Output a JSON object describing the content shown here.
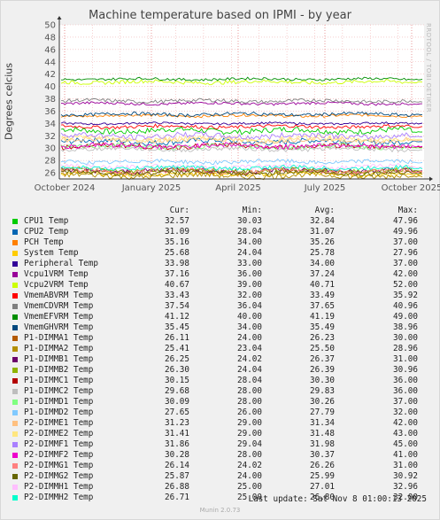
{
  "chart_data": {
    "type": "line",
    "title": "Machine temperature based on IPMI - by year",
    "ylabel": "Degrees celcius",
    "ylim": [
      25,
      50
    ],
    "yticks": [
      26,
      28,
      30,
      32,
      34,
      36,
      38,
      40,
      42,
      44,
      46,
      48,
      50
    ],
    "xticks": [
      "October 2024",
      "January 2025",
      "April 2025",
      "July 2025",
      "October 2025"
    ],
    "grid": true,
    "legend_headers": {
      "cur": "Cur:",
      "min": "Min:",
      "avg": "Avg:",
      "max": "Max:"
    },
    "series": [
      {
        "name": "CPU1 Temp",
        "color": "#00cc00",
        "cur": "32.57",
        "min": "30.03",
        "avg": "32.84",
        "max": "47.96"
      },
      {
        "name": "CPU2 Temp",
        "color": "#0066b3",
        "cur": "31.09",
        "min": "28.04",
        "avg": "31.07",
        "max": "49.96"
      },
      {
        "name": "PCH Temp",
        "color": "#ff8000",
        "cur": "35.16",
        "min": "34.00",
        "avg": "35.26",
        "max": "37.00"
      },
      {
        "name": "System Temp",
        "color": "#ffcc00",
        "cur": "25.68",
        "min": "24.04",
        "avg": "25.78",
        "max": "27.96"
      },
      {
        "name": "Peripheral Temp",
        "color": "#330099",
        "cur": "33.98",
        "min": "33.00",
        "avg": "34.00",
        "max": "37.00"
      },
      {
        "name": "Vcpu1VRM Temp",
        "color": "#990099",
        "cur": "37.16",
        "min": "36.00",
        "avg": "37.24",
        "max": "42.00"
      },
      {
        "name": "Vcpu2VRM Temp",
        "color": "#ccff00",
        "cur": "40.67",
        "min": "39.00",
        "avg": "40.71",
        "max": "52.00"
      },
      {
        "name": "VmemABVRM Temp",
        "color": "#ff0000",
        "cur": "33.43",
        "min": "32.00",
        "avg": "33.49",
        "max": "35.92"
      },
      {
        "name": "VmemCDVRM Temp",
        "color": "#808080",
        "cur": "37.54",
        "min": "36.04",
        "avg": "37.65",
        "max": "40.96"
      },
      {
        "name": "VmemEFVRM Temp",
        "color": "#008f00",
        "cur": "41.12",
        "min": "40.00",
        "avg": "41.19",
        "max": "49.00"
      },
      {
        "name": "VmemGHVRM Temp",
        "color": "#00487d",
        "cur": "35.45",
        "min": "34.00",
        "avg": "35.49",
        "max": "38.96"
      },
      {
        "name": "P1-DIMMA1 Temp",
        "color": "#b35a00",
        "cur": "26.11",
        "min": "24.00",
        "avg": "26.23",
        "max": "30.00"
      },
      {
        "name": "P1-DIMMA2 Temp",
        "color": "#b38f00",
        "cur": "25.41",
        "min": "23.04",
        "avg": "25.50",
        "max": "28.96"
      },
      {
        "name": "P1-DIMMB1 Temp",
        "color": "#6b006b",
        "cur": "26.25",
        "min": "24.02",
        "avg": "26.37",
        "max": "31.00"
      },
      {
        "name": "P1-DIMMB2 Temp",
        "color": "#8fb300",
        "cur": "26.30",
        "min": "24.04",
        "avg": "26.39",
        "max": "30.96"
      },
      {
        "name": "P1-DIMMC1 Temp",
        "color": "#b30000",
        "cur": "30.15",
        "min": "28.04",
        "avg": "30.30",
        "max": "36.00"
      },
      {
        "name": "P1-DIMMC2 Temp",
        "color": "#bebebe",
        "cur": "29.68",
        "min": "28.00",
        "avg": "29.83",
        "max": "36.00"
      },
      {
        "name": "P1-DIMMD1 Temp",
        "color": "#80ff80",
        "cur": "30.09",
        "min": "28.00",
        "avg": "30.26",
        "max": "37.00"
      },
      {
        "name": "P1-DIMMD2 Temp",
        "color": "#80c9ff",
        "cur": "27.65",
        "min": "26.00",
        "avg": "27.79",
        "max": "32.00"
      },
      {
        "name": "P2-DIMME1 Temp",
        "color": "#ffc080",
        "cur": "31.23",
        "min": "29.00",
        "avg": "31.34",
        "max": "42.00"
      },
      {
        "name": "P2-DIMME2 Temp",
        "color": "#ffe680",
        "cur": "31.41",
        "min": "29.00",
        "avg": "31.48",
        "max": "43.00"
      },
      {
        "name": "P2-DIMMF1 Temp",
        "color": "#aa80ff",
        "cur": "31.86",
        "min": "29.04",
        "avg": "31.98",
        "max": "45.00"
      },
      {
        "name": "P2-DIMMF2 Temp",
        "color": "#ee00cc",
        "cur": "30.28",
        "min": "28.00",
        "avg": "30.37",
        "max": "41.00"
      },
      {
        "name": "P2-DIMMG1 Temp",
        "color": "#ff8080",
        "cur": "26.14",
        "min": "24.02",
        "avg": "26.26",
        "max": "31.00"
      },
      {
        "name": "P2-DIMMG2 Temp",
        "color": "#666600",
        "cur": "25.87",
        "min": "24.00",
        "avg": "25.99",
        "max": "30.92"
      },
      {
        "name": "P2-DIMMH1 Temp",
        "color": "#ffbfff",
        "cur": "26.88",
        "min": "25.00",
        "avg": "27.01",
        "max": "32.96"
      },
      {
        "name": "P2-DIMMH2 Temp",
        "color": "#00ffcc",
        "cur": "26.71",
        "min": "25.00",
        "avg": "26.80",
        "max": "32.00"
      }
    ]
  },
  "side_label": "RRDTOOL / TOBI OETIKER",
  "footer": "Last update: Sat Nov  8 01:00:13 2025",
  "munin_version": "Munin 2.0.73"
}
